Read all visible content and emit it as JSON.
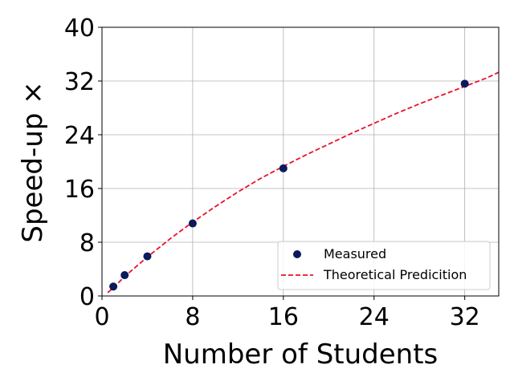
{
  "chart_data": {
    "type": "scatter",
    "xlabel": "Number of Students",
    "ylabel": "Speed-up ×",
    "xlim": [
      0,
      35
    ],
    "ylim": [
      0,
      40
    ],
    "xticks": [
      0,
      8,
      16,
      24,
      32
    ],
    "yticks": [
      0,
      8,
      16,
      24,
      32,
      40
    ],
    "grid": true,
    "legend_position": "bottom-right",
    "series": [
      {
        "name": "Measured",
        "kind": "scatter",
        "color": "#0b1a5c",
        "x": [
          1,
          2,
          4,
          8,
          16,
          32
        ],
        "y": [
          1.4,
          3.1,
          5.9,
          10.8,
          19.0,
          31.6
        ]
      },
      {
        "name": "Theoretical Predicition",
        "kind": "dashed-line",
        "color": "#e8112d",
        "x": [
          0.5,
          1,
          2,
          4,
          6,
          8,
          10,
          12,
          14,
          16,
          18,
          20,
          22,
          24,
          26,
          28,
          30,
          32,
          34,
          35
        ],
        "y": [
          0.5,
          1.2,
          2.9,
          5.8,
          8.5,
          11.0,
          13.3,
          15.5,
          17.5,
          19.3,
          21.0,
          22.6,
          24.2,
          25.7,
          27.2,
          28.6,
          29.9,
          31.2,
          32.5,
          33.3
        ]
      }
    ]
  }
}
